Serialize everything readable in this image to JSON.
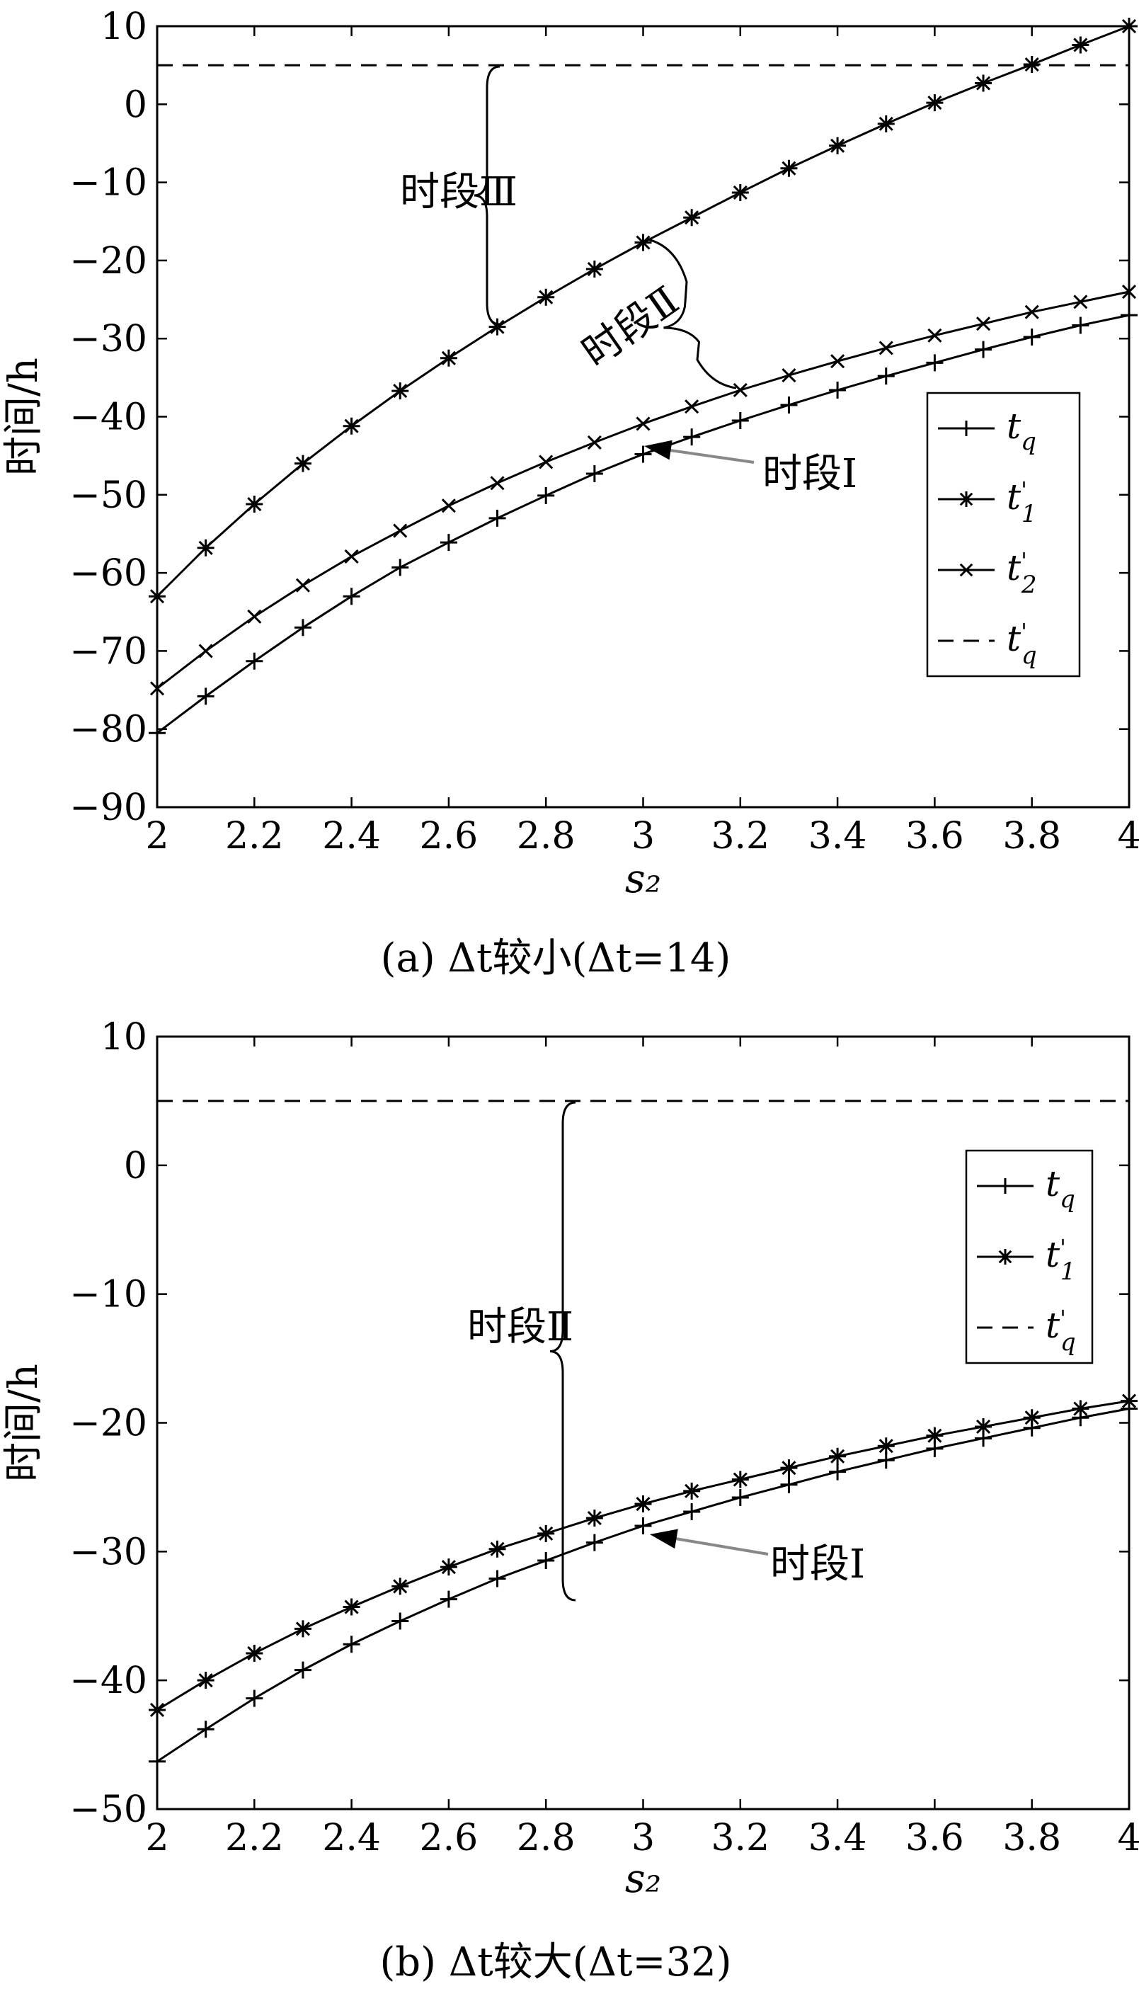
{
  "chart_data": [
    {
      "type": "line",
      "caption": "(a) Δt较小(Δt=14)",
      "xlabel": "s₂",
      "ylabel": "时间/h",
      "xlim": [
        2,
        4
      ],
      "ylim": [
        -90,
        10
      ],
      "xticks": [
        2,
        2.2,
        2.4,
        2.6,
        2.8,
        3,
        3.2,
        3.4,
        3.6,
        3.8,
        4
      ],
      "xtick_labels": [
        "2",
        "2.2",
        "2.4",
        "2.6",
        "2.8",
        "3",
        "3.2",
        "3.4",
        "3.6",
        "3.8",
        "4"
      ],
      "yticks": [
        10,
        0,
        -10,
        -20,
        -30,
        -40,
        -50,
        -60,
        -70,
        -80,
        -90
      ],
      "ytick_labels": [
        "10",
        "0",
        "−10",
        "−20",
        "−30",
        "−40",
        "−50",
        "−60",
        "−70",
        "−80",
        "−90"
      ],
      "grid": false,
      "legend_position": "right",
      "x": [
        2,
        2.1,
        2.2,
        2.3,
        2.4,
        2.5,
        2.6,
        2.7,
        2.8,
        2.9,
        3,
        3.1,
        3.2,
        3.3,
        3.4,
        3.5,
        3.6,
        3.7,
        3.8,
        3.9,
        4
      ],
      "series": [
        {
          "name": "tq",
          "marker": "plus",
          "style": "solid",
          "values": [
            -80.5,
            -75.8,
            -71.3,
            -67.0,
            -63.0,
            -59.3,
            -56.1,
            -53.0,
            -50.1,
            -47.3,
            -44.8,
            -42.6,
            -40.5,
            -38.5,
            -36.6,
            -34.8,
            -33.1,
            -31.4,
            -29.8,
            -28.3,
            -27.0
          ]
        },
        {
          "name": "t'1",
          "marker": "asterisk",
          "style": "solid",
          "values": [
            -63.0,
            -56.8,
            -51.2,
            -46.0,
            -41.2,
            -36.7,
            -32.5,
            -28.5,
            -24.7,
            -21.1,
            -17.7,
            -14.5,
            -11.3,
            -8.2,
            -5.3,
            -2.5,
            0.2,
            2.7,
            5.1,
            7.6,
            10.0
          ]
        },
        {
          "name": "t'2",
          "marker": "cross",
          "style": "solid",
          "values": [
            -74.8,
            -70.0,
            -65.6,
            -61.6,
            -57.9,
            -54.6,
            -51.4,
            -48.5,
            -45.8,
            -43.3,
            -40.9,
            -38.7,
            -36.6,
            -34.7,
            -32.9,
            -31.2,
            -29.6,
            -28.1,
            -26.6,
            -25.3,
            -24.0
          ]
        },
        {
          "name": "t'q",
          "marker": "none",
          "style": "dashed",
          "values": [
            5,
            5,
            5,
            5,
            5,
            5,
            5,
            5,
            5,
            5,
            5,
            5,
            5,
            5,
            5,
            5,
            5,
            5,
            5,
            5,
            5
          ]
        }
      ],
      "legend": [
        {
          "base": "t",
          "sub": "q",
          "sup": ""
        },
        {
          "base": "t",
          "sub": "1",
          "sup": "'"
        },
        {
          "base": "t",
          "sub": "2",
          "sup": "'"
        },
        {
          "base": "t",
          "sub": "q",
          "sup": "'"
        }
      ],
      "annotations": [
        {
          "text": "时段Ⅲ"
        },
        {
          "text": "时段Ⅱ"
        },
        {
          "text": "时段Ⅰ"
        }
      ]
    },
    {
      "type": "line",
      "caption": "(b) Δt较大(Δt=32)",
      "xlabel": "s₂",
      "ylabel": "时间/h",
      "xlim": [
        2,
        4
      ],
      "ylim": [
        -50,
        10
      ],
      "xticks": [
        2,
        2.2,
        2.4,
        2.6,
        2.8,
        3,
        3.2,
        3.4,
        3.6,
        3.8,
        4
      ],
      "xtick_labels": [
        "2",
        "2.2",
        "2.4",
        "2.6",
        "2.8",
        "3",
        "3.2",
        "3.4",
        "3.6",
        "3.8",
        "4"
      ],
      "yticks": [
        10,
        0,
        -10,
        -20,
        -30,
        -40,
        -50
      ],
      "ytick_labels": [
        "10",
        "0",
        "−10",
        "−20",
        "−30",
        "−40",
        "−50"
      ],
      "grid": false,
      "legend_position": "top-right",
      "x": [
        2,
        2.1,
        2.2,
        2.3,
        2.4,
        2.5,
        2.6,
        2.7,
        2.8,
        2.9,
        3,
        3.1,
        3.2,
        3.3,
        3.4,
        3.5,
        3.6,
        3.7,
        3.8,
        3.9,
        4
      ],
      "series": [
        {
          "name": "tq",
          "marker": "plus",
          "style": "solid",
          "values": [
            -46.3,
            -43.8,
            -41.4,
            -39.2,
            -37.2,
            -35.4,
            -33.7,
            -32.1,
            -30.7,
            -29.3,
            -28.0,
            -26.9,
            -25.8,
            -24.8,
            -23.8,
            -22.9,
            -22.0,
            -21.2,
            -20.4,
            -19.6,
            -18.9
          ]
        },
        {
          "name": "t'1",
          "marker": "asterisk",
          "style": "solid",
          "values": [
            -42.3,
            -40.0,
            -37.9,
            -36.0,
            -34.3,
            -32.7,
            -31.2,
            -29.8,
            -28.6,
            -27.4,
            -26.3,
            -25.3,
            -24.4,
            -23.5,
            -22.6,
            -21.8,
            -21.0,
            -20.3,
            -19.6,
            -18.9,
            -18.3
          ]
        },
        {
          "name": "t'q",
          "marker": "none",
          "style": "dashed",
          "values": [
            5,
            5,
            5,
            5,
            5,
            5,
            5,
            5,
            5,
            5,
            5,
            5,
            5,
            5,
            5,
            5,
            5,
            5,
            5,
            5,
            5
          ]
        }
      ],
      "legend": [
        {
          "base": "t",
          "sub": "q",
          "sup": ""
        },
        {
          "base": "t",
          "sub": "1",
          "sup": "'"
        },
        {
          "base": "t",
          "sub": "q",
          "sup": "'"
        }
      ],
      "annotations": [
        {
          "text": "时段Ⅱ"
        },
        {
          "text": "时段Ⅰ"
        }
      ]
    }
  ]
}
